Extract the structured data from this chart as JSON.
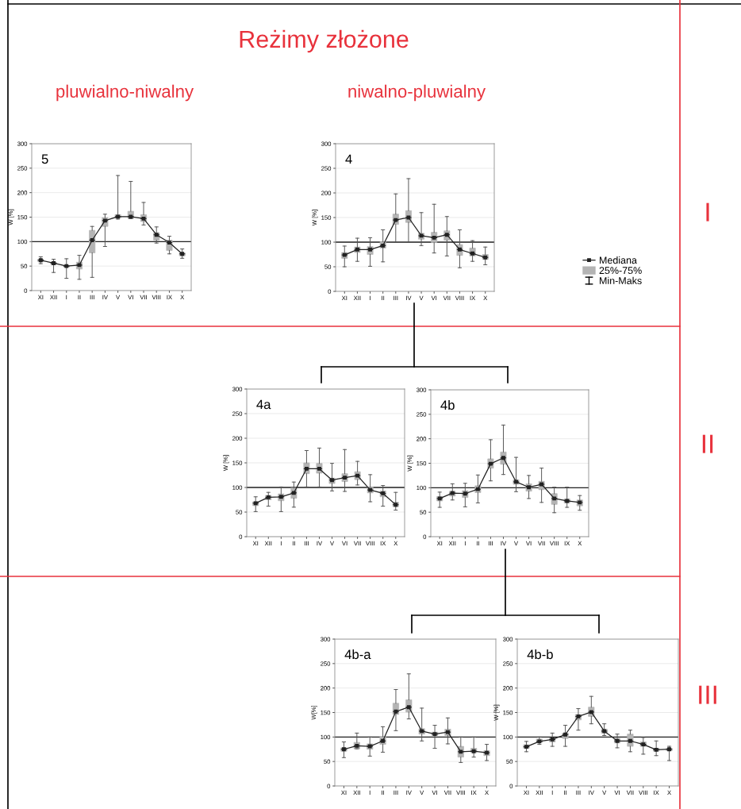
{
  "chart_data": [
    {
      "type": "box",
      "title": "5",
      "ylabel": "W [%]",
      "categories": [
        "XI",
        "XII",
        "I",
        "II",
        "III",
        "IV",
        "V",
        "VI",
        "VII",
        "VIII",
        "IX",
        "X"
      ],
      "series": [
        {
          "type": "line",
          "color": "#222222",
          "values": [
            62,
            56,
            50,
            52,
            103,
            143,
            151,
            151,
            147,
            114,
            98,
            75
          ]
        },
        {
          "type": "box",
          "color": "#b4b4b4",
          "boxes": [
            {
              "low": 55,
              "q1": 59,
              "median": 62,
              "q3": 64,
              "high": 69
            },
            {
              "low": 37,
              "q1": 53,
              "median": 56,
              "q3": 58,
              "high": 64
            },
            {
              "low": 25,
              "q1": 48,
              "median": 50,
              "q3": 51,
              "high": 65
            },
            {
              "low": 23,
              "q1": 44,
              "median": 52,
              "q3": 58,
              "high": 72
            },
            {
              "low": 27,
              "q1": 77,
              "median": 103,
              "q3": 123,
              "high": 131
            },
            {
              "low": 90,
              "q1": 131,
              "median": 143,
              "q3": 149,
              "high": 156
            },
            {
              "low": 146,
              "q1": 148,
              "median": 151,
              "q3": 155,
              "high": 235
            },
            {
              "low": 147,
              "q1": 147,
              "median": 151,
              "q3": 162,
              "high": 223
            },
            {
              "low": 134,
              "q1": 141,
              "median": 147,
              "q3": 155,
              "high": 180
            },
            {
              "low": 97,
              "q1": 103,
              "median": 114,
              "q3": 118,
              "high": 130
            },
            {
              "low": 75,
              "q1": 82,
              "median": 98,
              "q3": 103,
              "high": 111
            },
            {
              "low": 66,
              "q1": 71,
              "median": 75,
              "q3": 77,
              "high": 85
            }
          ]
        }
      ],
      "ylim": [
        0,
        300
      ],
      "yticks": [
        0,
        50,
        100,
        150,
        200,
        250,
        300
      ],
      "ref_lines": [
        {
          "axis": "y",
          "value": 100,
          "color": "#222222"
        }
      ],
      "grid": "y",
      "marker": "square",
      "line_style": "solid",
      "annotations": [
        "Reżimy złożone",
        "pluwialno-niwalny"
      ]
    },
    {
      "type": "box",
      "title": "4",
      "ylabel": "W [%]",
      "categories": [
        "XI",
        "XII",
        "I",
        "II",
        "III",
        "IV",
        "V",
        "VI",
        "VII",
        "VIII",
        "IX",
        "X"
      ],
      "series": [
        {
          "name": "Mediana",
          "type": "line",
          "color": "#222222",
          "values": [
            74,
            85,
            85,
            93,
            145,
            150,
            113,
            109,
            115,
            85,
            77,
            69
          ]
        },
        {
          "name": "25%-75%",
          "type": "box",
          "color": "#b4b4b4",
          "boxes": [
            {
              "low": 50,
              "q1": 67,
              "median": 74,
              "q3": 79,
              "high": 92
            },
            {
              "low": 61,
              "q1": 79,
              "median": 85,
              "q3": 90,
              "high": 108
            },
            {
              "low": 51,
              "q1": 75,
              "median": 85,
              "q3": 91,
              "high": 109
            },
            {
              "low": 60,
              "q1": 88,
              "median": 93,
              "q3": 101,
              "high": 125
            },
            {
              "low": 100,
              "q1": 136,
              "median": 145,
              "q3": 157,
              "high": 198
            },
            {
              "low": 100,
              "q1": 140,
              "median": 150,
              "q3": 164,
              "high": 229
            },
            {
              "low": 93,
              "q1": 106,
              "median": 113,
              "q3": 118,
              "high": 160
            },
            {
              "low": 78,
              "q1": 99,
              "median": 109,
              "q3": 120,
              "high": 177
            },
            {
              "low": 72,
              "q1": 104,
              "median": 115,
              "q3": 123,
              "high": 152
            },
            {
              "low": 48,
              "q1": 73,
              "median": 85,
              "q3": 95,
              "high": 125
            },
            {
              "low": 61,
              "q1": 72,
              "median": 77,
              "q3": 88,
              "high": 103
            },
            {
              "low": 54,
              "q1": 65,
              "median": 69,
              "q3": 75,
              "high": 90
            }
          ]
        }
      ],
      "ylim": [
        0,
        300
      ],
      "yticks": [
        0,
        50,
        100,
        150,
        200,
        250,
        300
      ],
      "ref_lines": [
        {
          "axis": "y",
          "value": 100,
          "color": "#222222"
        }
      ],
      "grid": "y",
      "marker": "square",
      "line_style": "solid",
      "legend": "right",
      "annotations": [
        "niwalno-pluwialny",
        "I",
        "Min-Maks"
      ]
    },
    {
      "type": "box",
      "title": "4a",
      "ylabel": "W [%]",
      "categories": [
        "XI",
        "XII",
        "I",
        "II",
        "III",
        "IV",
        "V",
        "VI",
        "VII",
        "VIII",
        "IX",
        "X"
      ],
      "series": [
        {
          "type": "line",
          "color": "#222222",
          "values": [
            68,
            80,
            81,
            89,
            138,
            138,
            115,
            120,
            124,
            95,
            88,
            65
          ]
        },
        {
          "type": "box",
          "color": "#b4b4b4",
          "boxes": [
            {
              "low": 51,
              "q1": 63,
              "median": 68,
              "q3": 71,
              "high": 81
            },
            {
              "low": 62,
              "q1": 75,
              "median": 80,
              "q3": 84,
              "high": 90
            },
            {
              "low": 51,
              "q1": 73,
              "median": 81,
              "q3": 87,
              "high": 101
            },
            {
              "low": 60,
              "q1": 78,
              "median": 89,
              "q3": 99,
              "high": 111
            },
            {
              "low": 101,
              "q1": 128,
              "median": 138,
              "q3": 150,
              "high": 175
            },
            {
              "low": 101,
              "q1": 129,
              "median": 138,
              "q3": 149,
              "high": 180
            },
            {
              "low": 93,
              "q1": 108,
              "median": 115,
              "q3": 119,
              "high": 149
            },
            {
              "low": 92,
              "q1": 112,
              "median": 120,
              "q3": 128,
              "high": 177
            },
            {
              "low": 105,
              "q1": 116,
              "median": 124,
              "q3": 132,
              "high": 153
            },
            {
              "low": 71,
              "q1": 89,
              "median": 95,
              "q3": 101,
              "high": 126
            },
            {
              "low": 62,
              "q1": 81,
              "median": 88,
              "q3": 93,
              "high": 104
            },
            {
              "low": 54,
              "q1": 61,
              "median": 65,
              "q3": 70,
              "high": 90
            }
          ]
        }
      ],
      "ylim": [
        0,
        300
      ],
      "yticks": [
        0,
        50,
        100,
        150,
        200,
        250,
        300
      ],
      "ref_lines": [
        {
          "axis": "y",
          "value": 100,
          "color": "#222222"
        }
      ],
      "grid": "y",
      "marker": "square",
      "line_style": "solid"
    },
    {
      "type": "box",
      "title": "4b",
      "ylabel": "W [%]",
      "categories": [
        "XI",
        "XII",
        "I",
        "II",
        "III",
        "IV",
        "V",
        "VI",
        "VII",
        "VIII",
        "IX",
        "X"
      ],
      "series": [
        {
          "type": "line",
          "color": "#222222",
          "values": [
            78,
            89,
            88,
            97,
            149,
            161,
            112,
            101,
            107,
            78,
            73,
            70
          ]
        },
        {
          "type": "box",
          "color": "#b4b4b4",
          "boxes": [
            {
              "low": 60,
              "q1": 73,
              "median": 78,
              "q3": 82,
              "high": 91
            },
            {
              "low": 75,
              "q1": 83,
              "median": 89,
              "q3": 93,
              "high": 108
            },
            {
              "low": 61,
              "q1": 80,
              "median": 88,
              "q3": 94,
              "high": 109
            },
            {
              "low": 69,
              "q1": 90,
              "median": 97,
              "q3": 104,
              "high": 126
            },
            {
              "low": 114,
              "q1": 140,
              "median": 149,
              "q3": 159,
              "high": 198
            },
            {
              "low": 127,
              "q1": 148,
              "median": 161,
              "q3": 173,
              "high": 228
            },
            {
              "low": 92,
              "q1": 107,
              "median": 112,
              "q3": 116,
              "high": 162
            },
            {
              "low": 78,
              "q1": 93,
              "median": 101,
              "q3": 108,
              "high": 125
            },
            {
              "low": 70,
              "q1": 96,
              "median": 107,
              "q3": 113,
              "high": 140
            },
            {
              "low": 49,
              "q1": 66,
              "median": 78,
              "q3": 88,
              "high": 101
            },
            {
              "low": 60,
              "q1": 69,
              "median": 73,
              "q3": 77,
              "high": 101
            },
            {
              "low": 54,
              "q1": 63,
              "median": 70,
              "q3": 75,
              "high": 84
            }
          ]
        }
      ],
      "ylim": [
        0,
        300
      ],
      "yticks": [
        0,
        50,
        100,
        150,
        200,
        250,
        300
      ],
      "ref_lines": [
        {
          "axis": "y",
          "value": 100,
          "color": "#222222"
        }
      ],
      "grid": "y",
      "marker": "square",
      "line_style": "solid",
      "annotations": [
        "II"
      ]
    },
    {
      "type": "box",
      "title": "4b-a",
      "ylabel": "W[%]",
      "categories": [
        "XI",
        "XII",
        "I",
        "II",
        "III",
        "IV",
        "V",
        "VI",
        "VII",
        "VIII",
        "IX",
        "X"
      ],
      "series": [
        {
          "type": "line",
          "color": "#222222",
          "values": [
            75,
            82,
            81,
            92,
            152,
            161,
            112,
            106,
            110,
            70,
            71,
            68
          ]
        },
        {
          "type": "box",
          "color": "#b4b4b4",
          "boxes": [
            {
              "low": 58,
              "q1": 71,
              "median": 75,
              "q3": 78,
              "high": 90
            },
            {
              "low": 76,
              "q1": 76,
              "median": 82,
              "q3": 89,
              "high": 108
            },
            {
              "low": 61,
              "q1": 75,
              "median": 81,
              "q3": 86,
              "high": 100
            },
            {
              "low": 69,
              "q1": 85,
              "median": 92,
              "q3": 101,
              "high": 121
            },
            {
              "low": 113,
              "q1": 146,
              "median": 152,
              "q3": 169,
              "high": 197
            },
            {
              "low": 137,
              "q1": 151,
              "median": 161,
              "q3": 176,
              "high": 229
            },
            {
              "low": 92,
              "q1": 106,
              "median": 112,
              "q3": 117,
              "high": 159
            },
            {
              "low": 77,
              "q1": 103,
              "median": 106,
              "q3": 110,
              "high": 124
            },
            {
              "low": 86,
              "q1": 103,
              "median": 110,
              "q3": 116,
              "high": 139
            },
            {
              "low": 48,
              "q1": 59,
              "median": 70,
              "q3": 81,
              "high": 100
            },
            {
              "low": 59,
              "q1": 68,
              "median": 71,
              "q3": 77,
              "high": 100
            },
            {
              "low": 52,
              "q1": 62,
              "median": 68,
              "q3": 72,
              "high": 85
            }
          ]
        }
      ],
      "ylim": [
        0,
        300
      ],
      "yticks": [
        0,
        50,
        100,
        150,
        200,
        250,
        300
      ],
      "ref_lines": [
        {
          "axis": "y",
          "value": 100,
          "color": "#222222"
        }
      ],
      "grid": "y",
      "marker": "square",
      "line_style": "solid"
    },
    {
      "type": "box",
      "title": "4b-b",
      "ylabel": "W [%]",
      "categories": [
        "XI",
        "XII",
        "I",
        "II",
        "III",
        "IV",
        "V",
        "VI",
        "VII",
        "VIII",
        "IX",
        "X"
      ],
      "series": [
        {
          "type": "line",
          "color": "#222222",
          "values": [
            80,
            91,
            95,
            105,
            142,
            151,
            112,
            92,
            92,
            85,
            74,
            75
          ]
        },
        {
          "type": "box",
          "color": "#b4b4b4",
          "boxes": [
            {
              "low": 70,
              "q1": 77,
              "median": 80,
              "q3": 84,
              "high": 91
            },
            {
              "low": 85,
              "q1": 89,
              "median": 91,
              "q3": 96,
              "high": 100
            },
            {
              "low": 81,
              "q1": 90,
              "median": 95,
              "q3": 98,
              "high": 108
            },
            {
              "low": 81,
              "q1": 97,
              "median": 105,
              "q3": 108,
              "high": 124
            },
            {
              "low": 114,
              "q1": 135,
              "median": 142,
              "q3": 146,
              "high": 158
            },
            {
              "low": 127,
              "q1": 142,
              "median": 151,
              "q3": 161,
              "high": 183
            },
            {
              "low": 103,
              "q1": 108,
              "median": 112,
              "q3": 116,
              "high": 127
            },
            {
              "low": 78,
              "q1": 88,
              "median": 92,
              "q3": 97,
              "high": 106
            },
            {
              "low": 70,
              "q1": 81,
              "median": 92,
              "q3": 106,
              "high": 114
            },
            {
              "low": 65,
              "q1": 81,
              "median": 85,
              "q3": 90,
              "high": 99
            },
            {
              "low": 62,
              "q1": 71,
              "median": 74,
              "q3": 77,
              "high": 92
            },
            {
              "low": 52,
              "q1": 72,
              "median": 75,
              "q3": 77,
              "high": 81
            }
          ]
        }
      ],
      "ylim": [
        0,
        300
      ],
      "yticks": [
        0,
        50,
        100,
        150,
        200,
        250,
        300
      ],
      "ref_lines": [
        {
          "axis": "y",
          "value": 100,
          "color": "#222222"
        }
      ],
      "grid": "y",
      "marker": "square",
      "line_style": "solid",
      "annotations": [
        "III"
      ]
    }
  ]
}
